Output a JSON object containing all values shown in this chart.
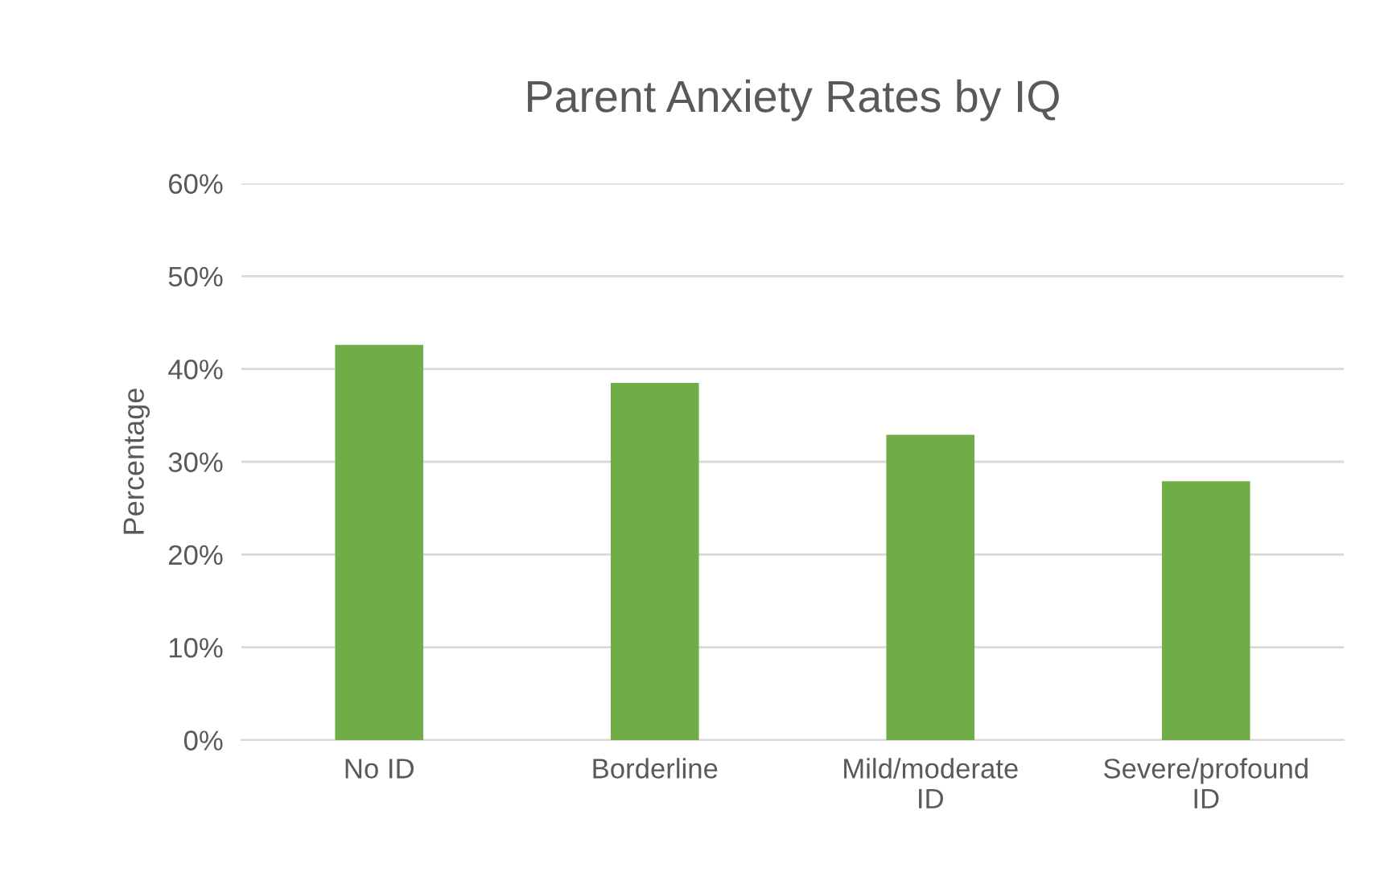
{
  "chart_data": {
    "type": "bar",
    "title": "Parent Anxiety Rates by IQ",
    "ylabel": "Percentage",
    "categories": [
      "No ID",
      "Borderline",
      "Mild/moderate ID",
      "Severe/profound ID"
    ],
    "values": [
      42.6,
      38.5,
      32.9,
      27.9
    ],
    "color": "#70ad47",
    "ylim": [
      0,
      60
    ],
    "yticks": [
      {
        "value": 0,
        "label": "0%"
      },
      {
        "value": 10,
        "label": "10%"
      },
      {
        "value": 20,
        "label": "20%"
      },
      {
        "value": 30,
        "label": "30%"
      },
      {
        "value": 40,
        "label": "40%"
      },
      {
        "value": 50,
        "label": "50%"
      },
      {
        "value": 60,
        "label": "60%"
      }
    ],
    "grid": "y"
  }
}
